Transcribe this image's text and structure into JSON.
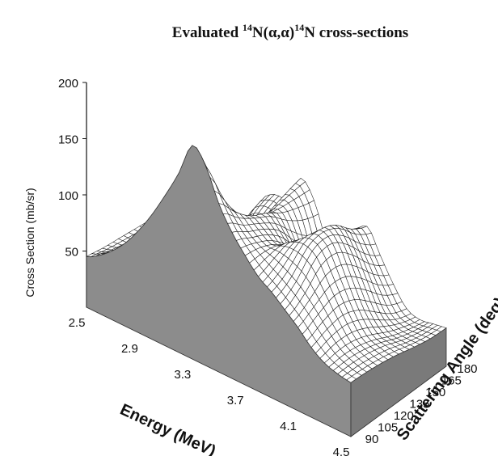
{
  "chart_data": {
    "type": "surface",
    "title": {
      "prefix": "Evaluated ",
      "mass1": "14",
      "mid": "N(α,α)",
      "mass2": "14",
      "suffix": "N cross-sections"
    },
    "zlabel": "Cross Section (mb/sr)",
    "xlabel": "Energy (MeV)",
    "ylabel": "Scattering Angle (deg)",
    "zticks": [
      "200",
      "150",
      "100",
      "50"
    ],
    "xticks": [
      "2.5",
      "2.9",
      "3.3",
      "3.7",
      "4.1",
      "4.5"
    ],
    "yticks": [
      "90",
      "105",
      "120",
      "135",
      "150",
      "165",
      "180"
    ],
    "xlim": [
      2.5,
      4.5
    ],
    "ylim": [
      90,
      180
    ],
    "zlim": [
      0,
      200
    ],
    "energy_MeV": [
      2.5,
      2.6,
      2.7,
      2.8,
      2.9,
      3.0,
      3.1,
      3.2,
      3.3,
      3.4,
      3.5,
      3.6,
      3.7,
      3.8,
      3.9,
      4.0,
      4.1,
      4.2,
      4.3,
      4.4,
      4.5
    ],
    "angle_deg": [
      90,
      105,
      120,
      135,
      150,
      165,
      180
    ],
    "cross_section_mb_sr": [
      [
        45,
        42,
        40,
        38,
        36,
        35,
        34
      ],
      [
        52,
        46,
        41,
        37,
        34,
        32,
        30
      ],
      [
        62,
        52,
        43,
        36,
        30,
        27,
        25
      ],
      [
        75,
        60,
        45,
        35,
        28,
        24,
        22
      ],
      [
        92,
        70,
        48,
        34,
        28,
        22,
        20
      ],
      [
        112,
        82,
        52,
        35,
        28,
        24,
        22
      ],
      [
        135,
        96,
        58,
        40,
        40,
        60,
        66
      ],
      [
        160,
        112,
        68,
        52,
        58,
        72,
        78
      ],
      [
        190,
        128,
        84,
        70,
        66,
        74,
        80
      ],
      [
        178,
        136,
        100,
        90,
        95,
        100,
        104
      ],
      [
        150,
        132,
        118,
        110,
        100,
        94,
        90
      ],
      [
        130,
        120,
        112,
        100,
        80,
        62,
        56
      ],
      [
        115,
        112,
        104,
        88,
        62,
        40,
        32
      ],
      [
        102,
        108,
        112,
        102,
        92,
        80,
        74
      ],
      [
        94,
        102,
        116,
        118,
        112,
        98,
        90
      ],
      [
        84,
        94,
        110,
        112,
        100,
        82,
        70
      ],
      [
        74,
        82,
        90,
        88,
        76,
        60,
        50
      ],
      [
        62,
        68,
        70,
        64,
        52,
        40,
        34
      ],
      [
        54,
        56,
        54,
        48,
        40,
        34,
        30
      ],
      [
        50,
        50,
        48,
        44,
        38,
        34,
        32
      ],
      [
        48,
        47,
        45,
        42,
        38,
        35,
        34
      ]
    ],
    "grid": false,
    "legend": "none",
    "colors": {
      "surface": "#ffffff",
      "mesh": "#1a1a1a",
      "floor": "#a6a6a6",
      "back_wall": "#ffffff"
    }
  }
}
